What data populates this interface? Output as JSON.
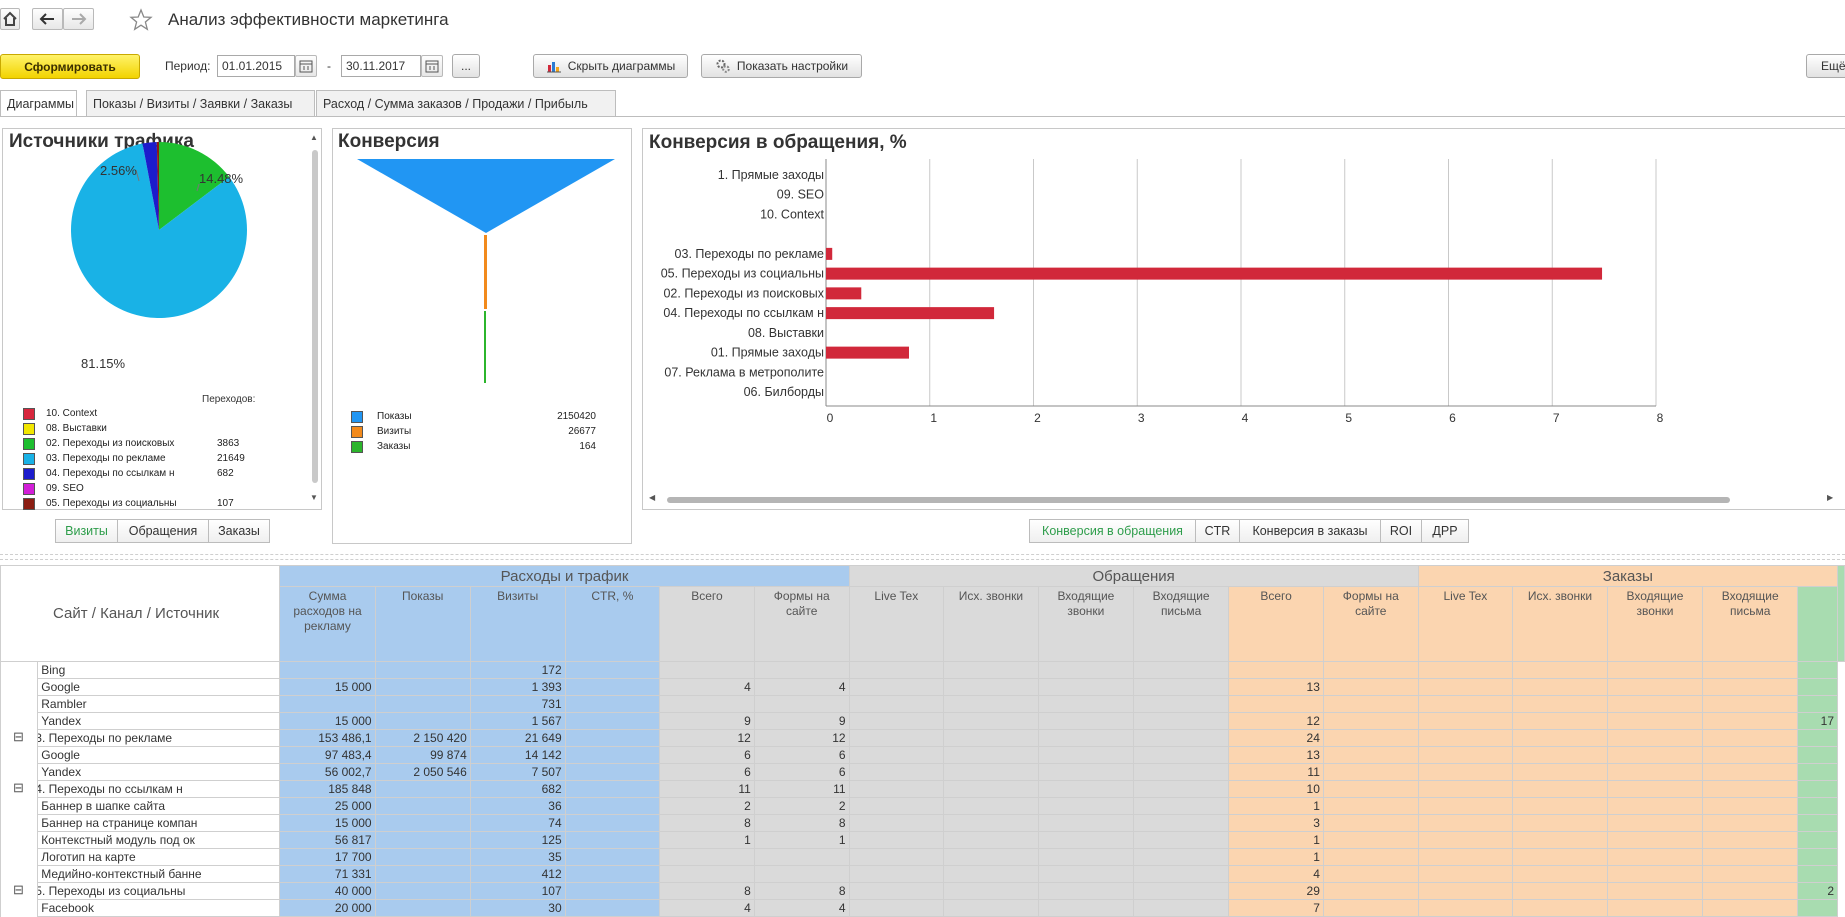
{
  "window": {
    "title": "Анализ эффективности маркетинга"
  },
  "toolbar": {
    "generate_label": "Сформировать",
    "period_label": "Период:",
    "date_from": "01.01.2015",
    "date_sep": "-",
    "date_to": "30.11.2017",
    "dots_label": "...",
    "hide_charts_label": "Скрыть диаграммы",
    "show_settings_label": "Показать настройки",
    "more_label": "Ещё"
  },
  "tabs": [
    {
      "label": "Диаграммы",
      "active": true
    },
    {
      "label": "Показы / Визиты / Заявки / Заказы"
    },
    {
      "label": "Расход / Сумма заказов / Продажи / Прибыль"
    }
  ],
  "traffic_panel": {
    "title": "Источники трафика",
    "pct_labels": [
      "2.56%",
      "14.48%",
      "81.15%"
    ],
    "legend_header": "Переходов:",
    "legend": [
      {
        "name": "10. Context",
        "value": "",
        "color": "#d7263d"
      },
      {
        "name": "08. Выставки",
        "value": "",
        "color": "#f2e600"
      },
      {
        "name": "02. Переходы из поисковых",
        "value": "3863",
        "color": "#1dbf2f"
      },
      {
        "name": "03. Переходы по рекламе",
        "value": "21649",
        "color": "#19b2e6"
      },
      {
        "name": "04. Переходы по ссылкам н",
        "value": "682",
        "color": "#1c1ccc"
      },
      {
        "name": "09. SEO",
        "value": "",
        "color": "#d21ed8"
      },
      {
        "name": "05. Переходы из социальны",
        "value": "107",
        "color": "#8b1d12"
      }
    ],
    "switch": [
      "Визиты",
      "Обращения",
      "Заказы"
    ]
  },
  "funnel_panel": {
    "title": "Конверсия",
    "legend": [
      {
        "name": "Показы",
        "value": "2150420",
        "color": "#2196f3"
      },
      {
        "name": "Визиты",
        "value": "26677",
        "color": "#f28a1c"
      },
      {
        "name": "Заказы",
        "value": "164",
        "color": "#2cb52c"
      }
    ]
  },
  "conversion_panel": {
    "title": "Конверсия в обращения, %",
    "switch": [
      "Конверсия в обращения",
      "CTR",
      "Конверсия в заказы",
      "ROI",
      "ДРР"
    ]
  },
  "chart_data": [
    {
      "type": "pie",
      "title": "Источники трафика",
      "labels": [
        "03. Переходы по рекламе",
        "02. Переходы из поисковых",
        "04. Переходы по ссылкам н",
        "05. Переходы из социальны"
      ],
      "values": [
        81.15,
        14.48,
        2.56,
        0.4
      ],
      "colors": [
        "#19b2e6",
        "#1dbf2f",
        "#1c1ccc",
        "#8b1d12"
      ]
    },
    {
      "type": "bar",
      "title": "Конверсия в обращения, %",
      "orientation": "horizontal",
      "categories": [
        "1. Прямые заходы",
        "09. SEO",
        "10. Context",
        "",
        "03. Переходы по рекламе",
        "05. Переходы из социальны",
        "02. Переходы из поисковых",
        "04. Переходы по ссылкам н",
        "08. Выставки",
        "01. Прямые заходы",
        "07. Реклама в метрополите",
        "06. Билборды"
      ],
      "values": [
        0,
        0,
        0,
        0,
        0.06,
        7.48,
        0.34,
        1.62,
        0,
        0.8,
        0,
        0
      ],
      "xlim": [
        0,
        8
      ],
      "xticks": [
        "0",
        "1",
        "2",
        "3",
        "4",
        "5",
        "6",
        "7",
        "8"
      ],
      "color": "#d1283a",
      "grid": true
    }
  ],
  "table": {
    "col_source": "Сайт / Канал / Источник",
    "groups": [
      {
        "label": "Расходы и трафик",
        "cls": "c-blue"
      },
      {
        "label": "Обращения",
        "cls": "c-gray"
      },
      {
        "label": "Заказы",
        "cls": "c-orange"
      }
    ],
    "subcols": [
      {
        "label": "Сумма расходов на рекламу",
        "cls": "c-blue"
      },
      {
        "label": "Показы",
        "cls": "c-blue"
      },
      {
        "label": "Визиты",
        "cls": "c-blue"
      },
      {
        "label": "CTR, %",
        "cls": "c-blue"
      },
      {
        "label": "Всего",
        "cls": "c-gray"
      },
      {
        "label": "Формы на сайте",
        "cls": "c-gray"
      },
      {
        "label": "Live Tex",
        "cls": "c-gray"
      },
      {
        "label": "Исх. звонки",
        "cls": "c-gray"
      },
      {
        "label": "Входящие звонки",
        "cls": "c-gray"
      },
      {
        "label": "Входящие письма",
        "cls": "c-gray"
      },
      {
        "label": "Всего",
        "cls": "c-orange"
      },
      {
        "label": "Формы на сайте",
        "cls": "c-orange"
      },
      {
        "label": "Live Tex",
        "cls": "c-orange"
      },
      {
        "label": "Исх. звонки",
        "cls": "c-orange"
      },
      {
        "label": "Входящие звонки",
        "cls": "c-orange"
      },
      {
        "label": "Входящие письма",
        "cls": "c-orange"
      },
      {
        "label": "",
        "cls": "c-green"
      }
    ],
    "rows": [
      {
        "name": "Bing",
        "group": false,
        "cells": [
          "",
          "",
          "172",
          "",
          "",
          "",
          "",
          "",
          "",
          "",
          "",
          "",
          "",
          "",
          "",
          "",
          ""
        ]
      },
      {
        "name": "Google",
        "group": false,
        "cells": [
          "15 000",
          "",
          "1 393",
          "",
          "4",
          "4",
          "",
          "",
          "",
          "",
          "13",
          "",
          "",
          "",
          "",
          "",
          ""
        ]
      },
      {
        "name": "Rambler",
        "group": false,
        "cells": [
          "",
          "",
          "731",
          "",
          "",
          "",
          "",
          "",
          "",
          "",
          "",
          "",
          "",
          "",
          "",
          "",
          ""
        ]
      },
      {
        "name": "Yandex",
        "group": false,
        "cells": [
          "15 000",
          "",
          "1 567",
          "",
          "9",
          "9",
          "",
          "",
          "",
          "",
          "12",
          "",
          "",
          "",
          "",
          "",
          "17"
        ]
      },
      {
        "name": "3. Переходы по рекламе",
        "group": true,
        "cells": [
          "153 486,1",
          "2 150 420",
          "21 649",
          "",
          "12",
          "12",
          "",
          "",
          "",
          "",
          "24",
          "",
          "",
          "",
          "",
          "",
          ""
        ]
      },
      {
        "name": "Google",
        "group": false,
        "cells": [
          "97 483,4",
          "99 874",
          "14 142",
          "",
          "6",
          "6",
          "",
          "",
          "",
          "",
          "13",
          "",
          "",
          "",
          "",
          "",
          ""
        ]
      },
      {
        "name": "Yandex",
        "group": false,
        "cells": [
          "56 002,7",
          "2 050 546",
          "7 507",
          "",
          "6",
          "6",
          "",
          "",
          "",
          "",
          "11",
          "",
          "",
          "",
          "",
          "",
          ""
        ]
      },
      {
        "name": "4. Переходы по ссылкам н",
        "group": true,
        "cells": [
          "185 848",
          "",
          "682",
          "",
          "11",
          "11",
          "",
          "",
          "",
          "",
          "10",
          "",
          "",
          "",
          "",
          "",
          ""
        ]
      },
      {
        "name": "Баннер в шапке сайта",
        "group": false,
        "cells": [
          "25 000",
          "",
          "36",
          "",
          "2",
          "2",
          "",
          "",
          "",
          "",
          "1",
          "",
          "",
          "",
          "",
          "",
          ""
        ]
      },
      {
        "name": "Баннер на странице компан",
        "group": false,
        "cells": [
          "15 000",
          "",
          "74",
          "",
          "8",
          "8",
          "",
          "",
          "",
          "",
          "3",
          "",
          "",
          "",
          "",
          "",
          ""
        ]
      },
      {
        "name": "Контекстный модуль под ок",
        "group": false,
        "cells": [
          "56 817",
          "",
          "125",
          "",
          "1",
          "1",
          "",
          "",
          "",
          "",
          "1",
          "",
          "",
          "",
          "",
          "",
          ""
        ]
      },
      {
        "name": "Логотип на карте",
        "group": false,
        "cells": [
          "17 700",
          "",
          "35",
          "",
          "",
          "",
          "",
          "",
          "",
          "",
          "1",
          "",
          "",
          "",
          "",
          "",
          ""
        ]
      },
      {
        "name": "Медийно-контекстный банне",
        "group": false,
        "cells": [
          "71 331",
          "",
          "412",
          "",
          "",
          "",
          "",
          "",
          "",
          "",
          "4",
          "",
          "",
          "",
          "",
          "",
          ""
        ]
      },
      {
        "name": "5. Переходы из социальны",
        "group": true,
        "cells": [
          "40 000",
          "",
          "107",
          "",
          "8",
          "8",
          "",
          "",
          "",
          "",
          "29",
          "",
          "",
          "",
          "",
          "",
          "2"
        ]
      },
      {
        "name": "Facebook",
        "group": false,
        "cells": [
          "20 000",
          "",
          "30",
          "",
          "4",
          "4",
          "",
          "",
          "",
          "",
          "7",
          "",
          "",
          "",
          "",
          "",
          ""
        ]
      }
    ]
  }
}
